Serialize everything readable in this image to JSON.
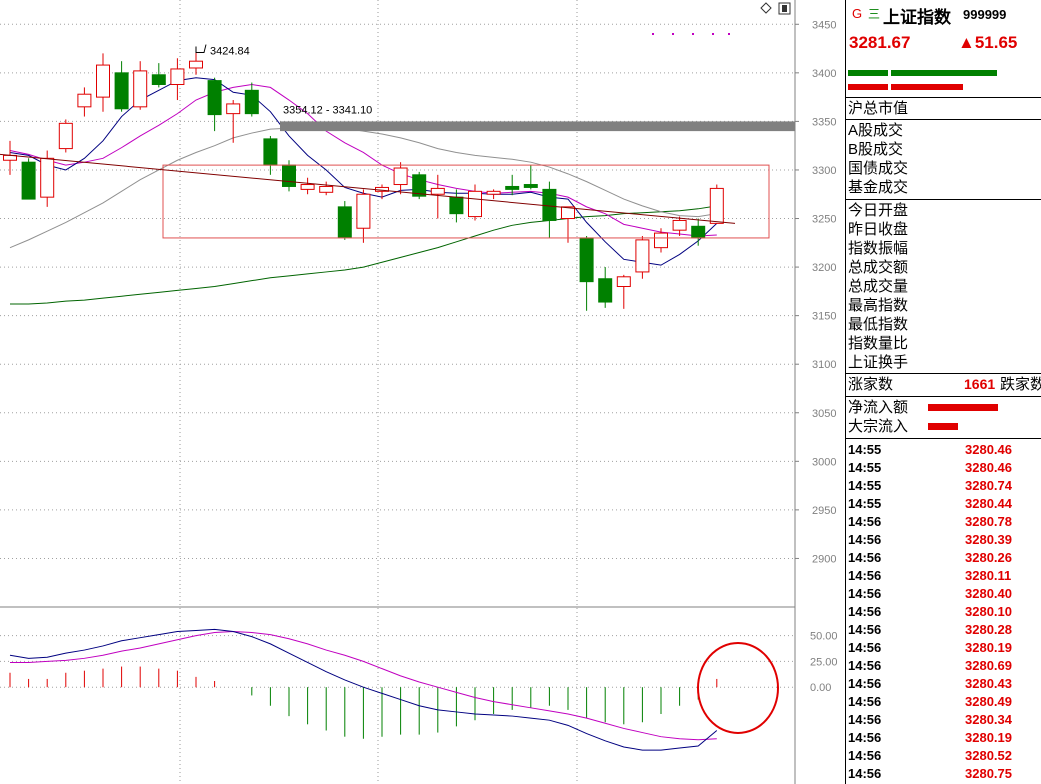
{
  "header": {
    "g_label": "G",
    "eq_label": "三",
    "name": "上证指数",
    "code": "999999",
    "price": "3281.67",
    "change": "▲51.65"
  },
  "stats_labels_1": [
    "沪总市值"
  ],
  "stats_labels_2": [
    "A股成交",
    "B股成交",
    "国债成交",
    "基金成交"
  ],
  "stats_labels_3": [
    "今日开盘",
    "昨日收盘",
    "指数振幅",
    "总成交额",
    "总成交量",
    "最高指数",
    "最低指数",
    "指数量比",
    "上证换手"
  ],
  "up_down": {
    "label": "涨家数",
    "value": "1661",
    "label2": "跌家数"
  },
  "flows": [
    {
      "label": "净流入额"
    },
    {
      "label": "大宗流入"
    }
  ],
  "ticks": [
    {
      "time": "14:55",
      "value": "3280.46"
    },
    {
      "time": "14:55",
      "value": "3280.46"
    },
    {
      "time": "14:55",
      "value": "3280.74"
    },
    {
      "time": "14:55",
      "value": "3280.44"
    },
    {
      "time": "14:56",
      "value": "3280.78"
    },
    {
      "time": "14:56",
      "value": "3280.39"
    },
    {
      "time": "14:56",
      "value": "3280.26"
    },
    {
      "time": "14:56",
      "value": "3280.11"
    },
    {
      "time": "14:56",
      "value": "3280.40"
    },
    {
      "time": "14:56",
      "value": "3280.10"
    },
    {
      "time": "14:56",
      "value": "3280.28"
    },
    {
      "time": "14:56",
      "value": "3280.19"
    },
    {
      "time": "14:56",
      "value": "3280.69"
    },
    {
      "time": "14:56",
      "value": "3280.43"
    },
    {
      "time": "14:56",
      "value": "3280.49"
    },
    {
      "time": "14:56",
      "value": "3280.34"
    },
    {
      "time": "14:56",
      "value": "3280.19"
    },
    {
      "time": "14:56",
      "value": "3280.52"
    },
    {
      "time": "14:56",
      "value": "3280.75"
    }
  ],
  "colors": {
    "up": "#e00000",
    "down": "#008000",
    "ma5": "#000080",
    "ma10": "#c000c0",
    "ma20": "#909090",
    "ma60": "#006400"
  },
  "chart_data": [
    {
      "type": "candlestick",
      "ylim": [
        2850,
        3475
      ],
      "y_ticks": [
        "3450",
        "3400",
        "3350",
        "3300",
        "3250",
        "3200",
        "3150",
        "3100",
        "3050",
        "3000",
        "2950",
        "2900"
      ],
      "annotations": [
        "3424.84",
        "3354.12 - 3341.10"
      ],
      "candles": [
        {
          "o": 3310,
          "h": 3330,
          "l": 3295,
          "c": 3315
        },
        {
          "o": 3308,
          "h": 3312,
          "l": 3270,
          "c": 3270
        },
        {
          "o": 3272,
          "h": 3320,
          "l": 3262,
          "c": 3312
        },
        {
          "o": 3322,
          "h": 3352,
          "l": 3318,
          "c": 3348
        },
        {
          "o": 3365,
          "h": 3385,
          "l": 3355,
          "c": 3378
        },
        {
          "o": 3375,
          "h": 3420,
          "l": 3360,
          "c": 3408
        },
        {
          "o": 3400,
          "h": 3412,
          "l": 3360,
          "c": 3363
        },
        {
          "o": 3365,
          "h": 3412,
          "l": 3362,
          "c": 3402
        },
        {
          "o": 3398,
          "h": 3410,
          "l": 3385,
          "c": 3388
        },
        {
          "o": 3388,
          "h": 3415,
          "l": 3372,
          "c": 3404
        },
        {
          "o": 3405,
          "h": 3425,
          "l": 3398,
          "c": 3412
        },
        {
          "o": 3392,
          "h": 3395,
          "l": 3340,
          "c": 3357
        },
        {
          "o": 3358,
          "h": 3372,
          "l": 3328,
          "c": 3368
        },
        {
          "o": 3382,
          "h": 3390,
          "l": 3355,
          "c": 3358
        },
        {
          "o": 3332,
          "h": 3335,
          "l": 3295,
          "c": 3305
        },
        {
          "o": 3305,
          "h": 3310,
          "l": 3278,
          "c": 3283
        },
        {
          "o": 3280,
          "h": 3292,
          "l": 3275,
          "c": 3285
        },
        {
          "o": 3277,
          "h": 3288,
          "l": 3274,
          "c": 3283
        },
        {
          "o": 3262,
          "h": 3268,
          "l": 3228,
          "c": 3231
        },
        {
          "o": 3240,
          "h": 3280,
          "l": 3225,
          "c": 3275
        },
        {
          "o": 3278,
          "h": 3285,
          "l": 3270,
          "c": 3282
        },
        {
          "o": 3285,
          "h": 3308,
          "l": 3275,
          "c": 3302
        },
        {
          "o": 3295,
          "h": 3298,
          "l": 3270,
          "c": 3273
        },
        {
          "o": 3275,
          "h": 3295,
          "l": 3250,
          "c": 3281
        },
        {
          "o": 3272,
          "h": 3280,
          "l": 3246,
          "c": 3255
        },
        {
          "o": 3252,
          "h": 3285,
          "l": 3248,
          "c": 3278
        },
        {
          "o": 3275,
          "h": 3280,
          "l": 3270,
          "c": 3278
        },
        {
          "o": 3283,
          "h": 3295,
          "l": 3274,
          "c": 3280
        },
        {
          "o": 3285,
          "h": 3305,
          "l": 3280,
          "c": 3282
        },
        {
          "o": 3280,
          "h": 3288,
          "l": 3230,
          "c": 3248
        },
        {
          "o": 3250,
          "h": 3262,
          "l": 3225,
          "c": 3262
        },
        {
          "o": 3230,
          "h": 3232,
          "l": 3155,
          "c": 3185
        },
        {
          "o": 3188,
          "h": 3200,
          "l": 3158,
          "c": 3164
        },
        {
          "o": 3180,
          "h": 3192,
          "l": 3157,
          "c": 3190
        },
        {
          "o": 3195,
          "h": 3232,
          "l": 3188,
          "c": 3228
        },
        {
          "o": 3220,
          "h": 3240,
          "l": 3215,
          "c": 3235
        },
        {
          "o": 3238,
          "h": 3252,
          "l": 3232,
          "c": 3248
        },
        {
          "o": 3242,
          "h": 3250,
          "l": 3222,
          "c": 3230
        },
        {
          "o": 3245,
          "h": 3285,
          "l": 3245,
          "c": 3281
        }
      ],
      "ma5": [
        3318,
        3315,
        3305,
        3300,
        3312,
        3330,
        3355,
        3372,
        3382,
        3392,
        3395,
        3393,
        3380,
        3377,
        3360,
        3335,
        3315,
        3300,
        3282,
        3276,
        3272,
        3279,
        3280,
        3277,
        3276,
        3276,
        3275,
        3275,
        3277,
        3272,
        3270,
        3246,
        3226,
        3208,
        3205,
        3202,
        3213,
        3227,
        3245
      ],
      "ma10": [
        3320,
        3316,
        3310,
        3305,
        3308,
        3312,
        3323,
        3335,
        3346,
        3358,
        3372,
        3380,
        3385,
        3388,
        3385,
        3372,
        3358,
        3340,
        3328,
        3318,
        3305,
        3296,
        3290,
        3285,
        3281,
        3278,
        3276,
        3277,
        3278,
        3276,
        3272,
        3262,
        3255,
        3244,
        3240,
        3236,
        3234,
        3232,
        3233
      ],
      "ma20": [
        3220,
        3228,
        3237,
        3246,
        3256,
        3266,
        3278,
        3290,
        3300,
        3310,
        3318,
        3325,
        3333,
        3338,
        3342,
        3343,
        3344,
        3344,
        3343,
        3340,
        3337,
        3333,
        3328,
        3322,
        3318,
        3315,
        3313,
        3311,
        3308,
        3303,
        3296,
        3288,
        3279,
        3270,
        3263,
        3257,
        3253,
        3252,
        3255
      ],
      "ma60": [
        3162,
        3162,
        3163,
        3165,
        3166,
        3168,
        3170,
        3172,
        3174,
        3176,
        3178,
        3180,
        3183,
        3186,
        3189,
        3191,
        3193,
        3195,
        3197,
        3200,
        3205,
        3210,
        3215,
        3220,
        3226,
        3232,
        3238,
        3243,
        3246,
        3248,
        3250,
        3252,
        3253,
        3255,
        3256,
        3257,
        3258,
        3260,
        3263
      ]
    },
    {
      "type": "macd",
      "ylim": [
        -90,
        70
      ],
      "y_ticks": [
        "50.00",
        "25.00",
        "0.00"
      ],
      "dif": [
        31,
        28,
        29,
        33,
        36,
        40,
        45,
        48,
        51,
        54,
        55,
        56,
        54,
        49,
        42,
        33,
        24,
        15,
        7,
        0,
        -6,
        -12,
        -18,
        -22,
        -24,
        -26,
        -27,
        -28,
        -30,
        -32,
        -37,
        -45,
        -52,
        -58,
        -61,
        -61,
        -59,
        -57,
        -42
      ],
      "dea": [
        24,
        24,
        25,
        26,
        28,
        31,
        35,
        38,
        42,
        46,
        50,
        53,
        54,
        53,
        51,
        47,
        42,
        36,
        31,
        25,
        18,
        11,
        5,
        0,
        -5,
        -10,
        -14,
        -17,
        -20,
        -23,
        -26,
        -30,
        -35,
        -40,
        -44,
        -48,
        -50,
        -51,
        -50
      ],
      "hist": [
        14,
        8,
        8,
        14,
        16,
        18,
        20,
        20,
        18,
        16,
        10,
        6,
        0,
        -8,
        -18,
        -28,
        -36,
        -42,
        -48,
        -50,
        -48,
        -46,
        -46,
        -44,
        -38,
        -32,
        -26,
        -22,
        -20,
        -18,
        -22,
        -30,
        -34,
        -36,
        -34,
        -26,
        -18,
        -12,
        8
      ]
    }
  ]
}
